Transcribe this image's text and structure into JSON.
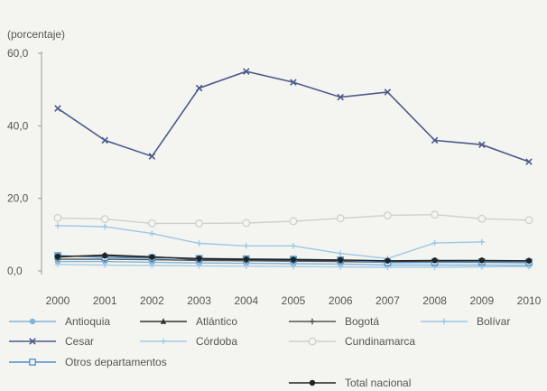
{
  "chart_data": {
    "type": "line",
    "unit_label": "(porcentaje)",
    "xlabel": "",
    "ylabel": "",
    "x": [
      "2000",
      "2001",
      "2002",
      "2003",
      "2004",
      "2005",
      "2006",
      "2007",
      "2008",
      "2009",
      "2010"
    ],
    "y_ticks": [
      "0,0",
      "20,0",
      "40,0",
      "60,0"
    ],
    "ylim": [
      0,
      60
    ],
    "grid": false,
    "legend_placement": "bottom",
    "series": [
      {
        "name": "Antioquia",
        "color": "#7fb3d9",
        "marker": "circle-filled",
        "values": [
          2.6,
          2.6,
          2.4,
          2.2,
          2.1,
          2.0,
          1.9,
          1.6,
          1.6,
          1.6,
          1.5
        ]
      },
      {
        "name": "Atlántico",
        "color": "#333333",
        "marker": "triangle",
        "values": [
          3.8,
          4.4,
          3.9,
          3.1,
          3.0,
          2.9,
          2.8,
          2.6,
          2.7,
          2.8,
          2.7
        ]
      },
      {
        "name": "Bogotá",
        "color": "#555555",
        "marker": "plus",
        "values": [
          3.2,
          3.2,
          3.1,
          2.9,
          2.8,
          2.7,
          2.6,
          2.4,
          2.4,
          2.4,
          2.3
        ]
      },
      {
        "name": "Bolívar",
        "color": "#9cc7e6",
        "marker": "plus",
        "values": [
          12.5,
          12.2,
          10.3,
          7.6,
          6.9,
          6.9,
          4.8,
          3.4,
          7.7,
          8.0,
          null
        ]
      },
      {
        "name": "Cesar",
        "color": "#4c5a8a",
        "marker": "x",
        "values": [
          44.8,
          36.0,
          31.6,
          50.4,
          55.0,
          52.0,
          47.9,
          49.3,
          36.0,
          34.8,
          30.1
        ]
      },
      {
        "name": "Córdoba",
        "color": "#a7cbe6",
        "marker": "plus",
        "values": [
          1.8,
          1.6,
          1.5,
          1.4,
          1.3,
          1.2,
          1.1,
          1.0,
          1.0,
          1.1,
          1.2
        ]
      },
      {
        "name": "Cundinamarca",
        "color": "#cfcfcf",
        "marker": "circle-open",
        "values": [
          14.6,
          14.3,
          13.1,
          13.1,
          13.2,
          13.7,
          14.5,
          15.3,
          15.5,
          14.4,
          14.0
        ]
      },
      {
        "name": "Otros departamentos",
        "color": "#4a90c9",
        "marker": "square-open",
        "values": [
          4.2,
          3.7,
          3.6,
          3.4,
          3.3,
          3.2,
          3.0,
          2.3,
          2.4,
          2.5,
          2.4
        ]
      },
      {
        "name": "Total nacional",
        "color": "#222222",
        "marker": "circle-filled",
        "values": [
          4.0,
          4.2,
          3.8,
          3.4,
          3.2,
          3.1,
          3.0,
          2.8,
          2.9,
          2.9,
          2.8
        ]
      }
    ]
  }
}
